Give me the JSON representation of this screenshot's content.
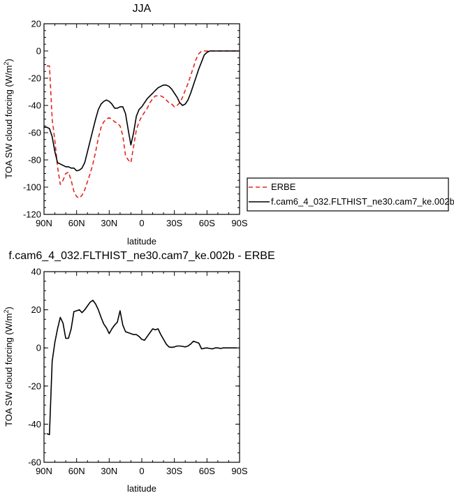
{
  "chart_data": [
    {
      "type": "line",
      "title": "JJA",
      "xlabel": "latitude",
      "ylabel_main": "TOA SW cloud forcing (W/m",
      "ylabel_sup": "2",
      "ylabel_tail": ")",
      "xlim": [
        -90,
        90
      ],
      "ylim": [
        -120,
        20
      ],
      "x_ticks": [
        -90,
        -60,
        -30,
        0,
        30,
        60,
        90
      ],
      "x_tick_labels": [
        "90N",
        "60N",
        "30N",
        "0",
        "30S",
        "60S",
        "90S"
      ],
      "y_ticks": [
        -120,
        -100,
        -80,
        -60,
        -40,
        -20,
        0,
        20
      ],
      "y_tick_labels": [
        "-120",
        "-100",
        "-80",
        "-60",
        "-40",
        "-20",
        "0",
        "20"
      ],
      "legend_position": "right, outside the plot",
      "series": [
        {
          "name": "ERBE",
          "color": "#e8231f",
          "dash": true,
          "x": [
            -87.5,
            -85,
            -82.5,
            -80,
            -77.5,
            -75,
            -72.5,
            -70,
            -67.5,
            -65,
            -62.5,
            -60,
            -57.5,
            -55,
            -52.5,
            -50,
            -47.5,
            -45,
            -42.5,
            -40,
            -37.5,
            -35,
            -32.5,
            -30,
            -27.5,
            -25,
            -22.5,
            -20,
            -17.5,
            -15,
            -12.5,
            -10,
            -7.5,
            -5,
            -2.5,
            0,
            2.5,
            5,
            7.5,
            10,
            12.5,
            15,
            17.5,
            20,
            22.5,
            25,
            27.5,
            30,
            32.5,
            35,
            37.5,
            40,
            42.5,
            45,
            47.5,
            50,
            52.5,
            55,
            57.5,
            60,
            62.5,
            65,
            67.5,
            70,
            72.5,
            75,
            77.5,
            80,
            82.5,
            85,
            87.5
          ],
          "y": [
            -11,
            -11,
            -50,
            -66,
            -85,
            -98,
            -95,
            -90,
            -89,
            -95,
            -103,
            -107,
            -108,
            -106,
            -102,
            -96,
            -90,
            -83,
            -74,
            -64,
            -56,
            -52,
            -50,
            -49,
            -50,
            -52,
            -53,
            -55,
            -62,
            -77,
            -80,
            -82,
            -70,
            -58,
            -52,
            -48,
            -45,
            -42,
            -38,
            -35,
            -33,
            -33,
            -33,
            -34,
            -36,
            -38,
            -39,
            -41,
            -40,
            -38,
            -34,
            -29,
            -24,
            -18,
            -12,
            -6,
            -2,
            0,
            0,
            0,
            0,
            0,
            0,
            0,
            0,
            0,
            0,
            0,
            0,
            0,
            0
          ]
        },
        {
          "name": "f.cam6_4_032.FLTHIST_ne30.cam7_ke.002b",
          "color": "#000000",
          "dash": false,
          "x": [
            -90,
            -87.5,
            -85,
            -82.5,
            -80,
            -77.5,
            -75,
            -72.5,
            -70,
            -67.5,
            -65,
            -62.5,
            -60,
            -57.5,
            -55,
            -52.5,
            -50,
            -47.5,
            -45,
            -42.5,
            -40,
            -37.5,
            -35,
            -32.5,
            -30,
            -27.5,
            -25,
            -22.5,
            -20,
            -17.5,
            -15,
            -12.5,
            -10,
            -7.5,
            -5,
            -2.5,
            0,
            2.5,
            5,
            7.5,
            10,
            12.5,
            15,
            17.5,
            20,
            22.5,
            25,
            27.5,
            30,
            32.5,
            35,
            37.5,
            40,
            42.5,
            45,
            47.5,
            50,
            52.5,
            55,
            57.5,
            60,
            62.5,
            65,
            67.5,
            70,
            72.5,
            75,
            77.5,
            80,
            82.5,
            85,
            87.5,
            90
          ],
          "y": [
            -56,
            -56,
            -57,
            -63,
            -74,
            -82,
            -83,
            -84,
            -85,
            -85,
            -86,
            -86,
            -88,
            -87.5,
            -86,
            -82,
            -74,
            -66,
            -58,
            -50,
            -43,
            -39,
            -37,
            -36,
            -37,
            -39,
            -42,
            -42,
            -41,
            -41,
            -46,
            -58,
            -69,
            -60,
            -48,
            -43,
            -41,
            -38,
            -35,
            -33,
            -31,
            -29,
            -27,
            -26,
            -25,
            -25,
            -26,
            -28,
            -31,
            -34,
            -38,
            -40,
            -39,
            -36,
            -31,
            -25,
            -19,
            -13,
            -8,
            -3,
            -1,
            0,
            0,
            0,
            0,
            0,
            0,
            0,
            0,
            0,
            0,
            0,
            0
          ]
        }
      ]
    },
    {
      "type": "line",
      "title": "f.cam6_4_032.FLTHIST_ne30.cam7_ke.002b - ERBE",
      "xlabel": "latitude",
      "ylabel_main": "TOA SW cloud forcing (W/m",
      "ylabel_sup": "2",
      "ylabel_tail": ")",
      "xlim": [
        -90,
        90
      ],
      "ylim": [
        -60,
        40
      ],
      "x_ticks": [
        -90,
        -60,
        -30,
        0,
        30,
        60,
        90
      ],
      "x_tick_labels": [
        "90N",
        "60N",
        "30N",
        "0",
        "30S",
        "60S",
        "90S"
      ],
      "y_ticks": [
        -60,
        -40,
        -20,
        0,
        20,
        40
      ],
      "y_tick_labels": [
        "-60",
        "-40",
        "-20",
        "0",
        "20",
        "40"
      ],
      "series": [
        {
          "color": "#000000",
          "dash": false,
          "x": [
            -87.5,
            -85,
            -82.5,
            -80,
            -77.5,
            -75,
            -72.5,
            -70,
            -67.5,
            -65,
            -62.5,
            -60,
            -57.5,
            -55,
            -52.5,
            -50,
            -47.5,
            -45,
            -42.5,
            -40,
            -37.5,
            -35,
            -32.5,
            -30,
            -27.5,
            -25,
            -22.5,
            -20,
            -17.5,
            -15,
            -12.5,
            -10,
            -7.5,
            -5,
            -2.5,
            0,
            2.5,
            5,
            7.5,
            10,
            12.5,
            15,
            17.5,
            20,
            22.5,
            25,
            27.5,
            30,
            32.5,
            35,
            37.5,
            40,
            42.5,
            45,
            47.5,
            50,
            52.5,
            55,
            57.5,
            60,
            62.5,
            65,
            67.5,
            70,
            72.5,
            75,
            77.5,
            80,
            82.5,
            85,
            87.5
          ],
          "y": [
            -45,
            -45.5,
            -7,
            3,
            10,
            16,
            13,
            5,
            5,
            10,
            19,
            19.5,
            20,
            18.5,
            20,
            22,
            24,
            25,
            23,
            20,
            16,
            12.5,
            10.5,
            7.5,
            10,
            12,
            13.5,
            19.5,
            12,
            8.5,
            8,
            7.5,
            7,
            7,
            6,
            4.5,
            4,
            6,
            8,
            10,
            9.5,
            10,
            7,
            4.5,
            2,
            0.5,
            0.3,
            0.5,
            1,
            1,
            0.8,
            0.5,
            1,
            2,
            3.5,
            3,
            2.5,
            -0.5,
            -0.2,
            0,
            -0.3,
            -0.5,
            0,
            0,
            -0.3,
            0,
            0,
            0,
            0,
            0,
            0
          ]
        }
      ]
    }
  ]
}
